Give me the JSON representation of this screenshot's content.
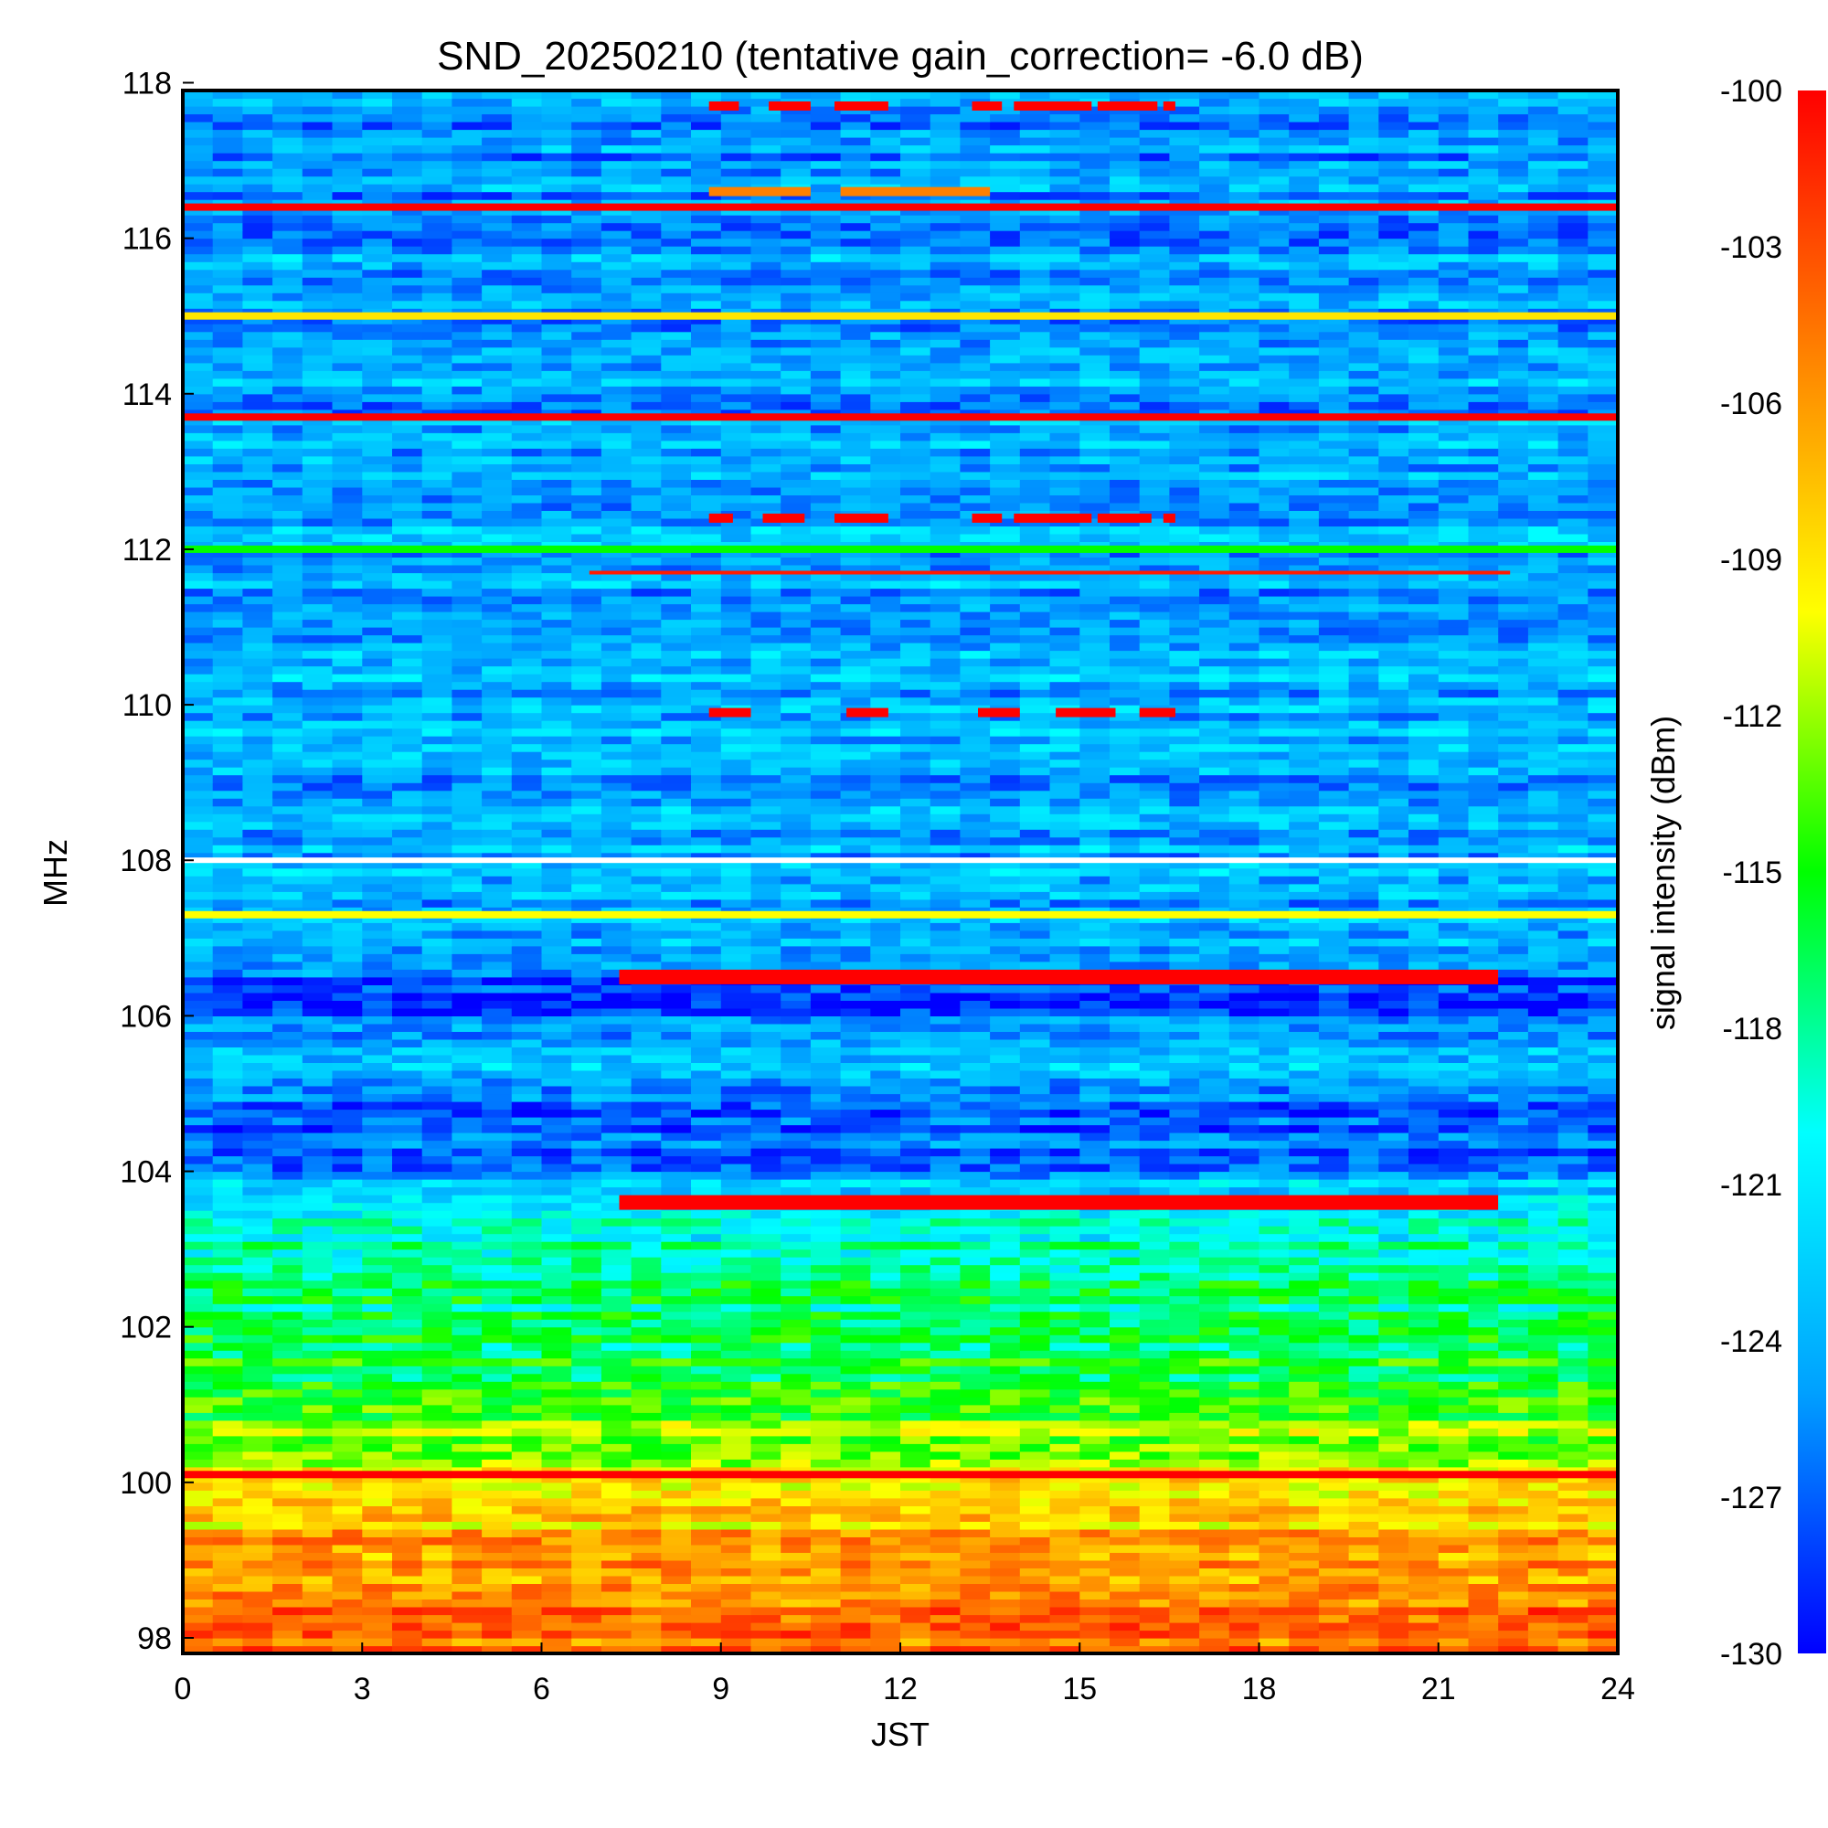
{
  "chart_data": {
    "type": "heatmap",
    "title": "SND_20250210 (tentative gain_correction= -6.0 dB)",
    "xlabel": "JST",
    "ylabel": "MHz",
    "xlim": [
      0,
      24
    ],
    "ylim": [
      97.8,
      117.9
    ],
    "x_ticks": [
      0,
      3,
      6,
      9,
      12,
      15,
      18,
      21,
      24
    ],
    "y_ticks": [
      98,
      100,
      102,
      104,
      106,
      108,
      110,
      112,
      114,
      116,
      118
    ],
    "colorbar": {
      "label": "signal intensity (dBm)",
      "range": [
        -130,
        -100
      ],
      "ticks": [
        -100,
        -103,
        -106,
        -109,
        -112,
        -115,
        -118,
        -121,
        -124,
        -127,
        -130
      ],
      "colormap": [
        "#0000ff",
        "#00a0ff",
        "#00ffff",
        "#00ff00",
        "#ffff00",
        "#ff8000",
        "#ff0000"
      ]
    },
    "continuous_bands_mhz_dbm": [
      {
        "freq": 116.4,
        "dbm": -100
      },
      {
        "freq": 115.0,
        "dbm": -109
      },
      {
        "freq": 113.7,
        "dbm": -100
      },
      {
        "freq": 112.0,
        "dbm": -115
      },
      {
        "freq": 107.3,
        "dbm": -110
      },
      {
        "freq": 100.1,
        "dbm": -100
      }
    ],
    "strong_bands_mhz_jst_dbm": [
      {
        "freq": 106.5,
        "start": 7.3,
        "end": 22.0,
        "dbm": -100
      },
      {
        "freq": 103.6,
        "start": 7.3,
        "end": 22.0,
        "dbm": -100
      },
      {
        "freq": 111.7,
        "start": 6.8,
        "end": 22.2,
        "dbm": -101
      }
    ],
    "intermittent_bands_mhz_jst": [
      {
        "freq": 117.7,
        "segments": [
          [
            8.8,
            9.3
          ],
          [
            9.8,
            10.5
          ],
          [
            10.9,
            11.8
          ],
          [
            13.2,
            13.7
          ],
          [
            13.9,
            15.2
          ],
          [
            15.3,
            16.3
          ],
          [
            16.4,
            16.6
          ]
        ]
      },
      {
        "freq": 112.4,
        "segments": [
          [
            8.8,
            9.2
          ],
          [
            9.7,
            10.4
          ],
          [
            10.9,
            11.8
          ],
          [
            13.2,
            13.7
          ],
          [
            13.9,
            15.2
          ],
          [
            15.3,
            16.2
          ],
          [
            16.4,
            16.6
          ]
        ]
      },
      {
        "freq": 109.9,
        "segments": [
          [
            8.8,
            9.5
          ],
          [
            11.1,
            11.8
          ],
          [
            13.3,
            14.0
          ],
          [
            14.6,
            15.6
          ],
          [
            16.0,
            16.6
          ]
        ]
      },
      {
        "freq": 116.6,
        "segments": [
          [
            8.8,
            10.5
          ],
          [
            11.0,
            13.5
          ]
        ]
      }
    ],
    "noise_floor_mhz_dbm": [
      {
        "freq": 98.0,
        "dbm": -104
      },
      {
        "freq": 99.0,
        "dbm": -106
      },
      {
        "freq": 100.0,
        "dbm": -110
      },
      {
        "freq": 101.5,
        "dbm": -116
      },
      {
        "freq": 103.0,
        "dbm": -119
      },
      {
        "freq": 104.5,
        "dbm": -128
      },
      {
        "freq": 105.5,
        "dbm": -123
      },
      {
        "freq": 106.2,
        "dbm": -128
      },
      {
        "freq": 107.0,
        "dbm": -124
      },
      {
        "freq": 108.5,
        "dbm": -124
      },
      {
        "freq": 118.0,
        "dbm": -125
      }
    ]
  }
}
